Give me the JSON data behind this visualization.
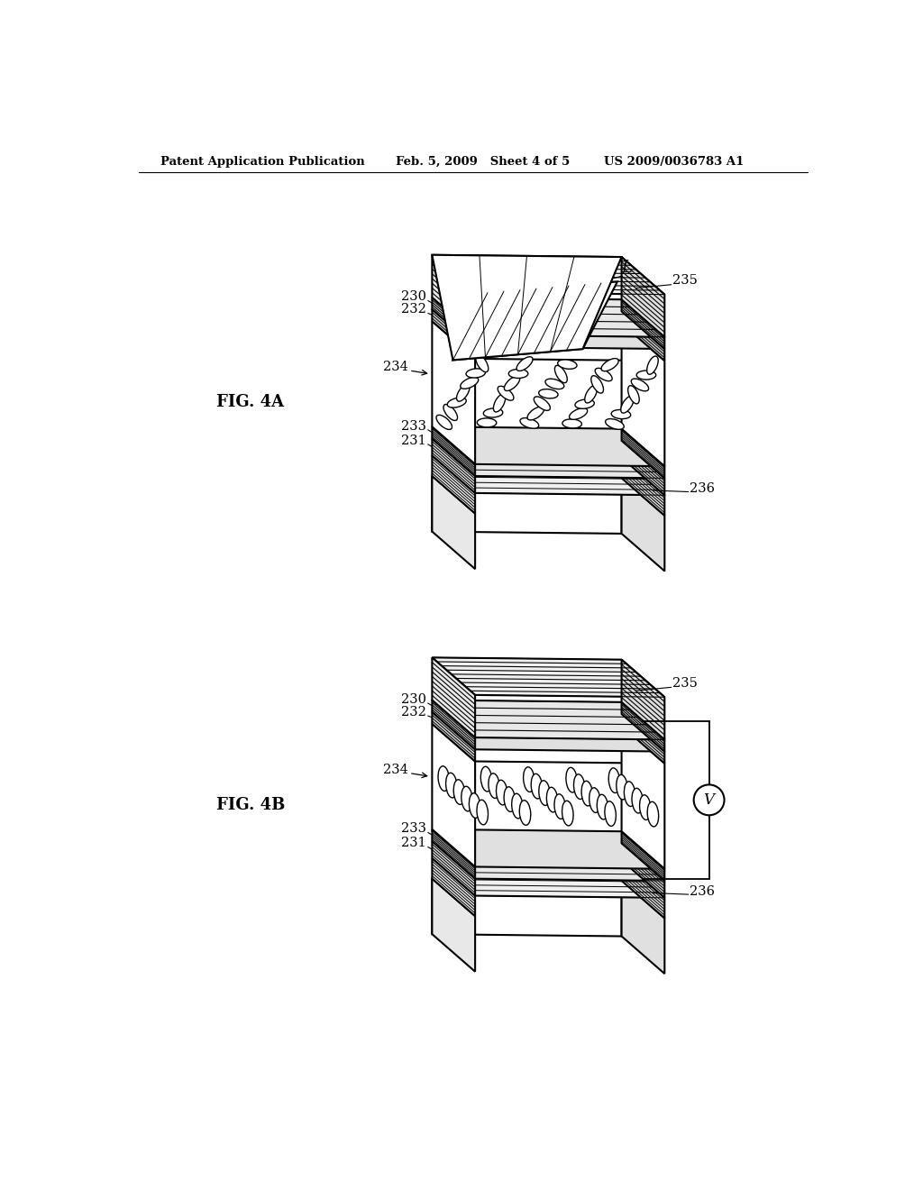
{
  "background_color": "#ffffff",
  "header_left": "Patent Application Publication",
  "header_mid": "Feb. 5, 2009   Sheet 4 of 5",
  "header_right": "US 2009/0036783 A1",
  "fig4a_label": "FIG. 4A",
  "fig4b_label": "FIG. 4B"
}
